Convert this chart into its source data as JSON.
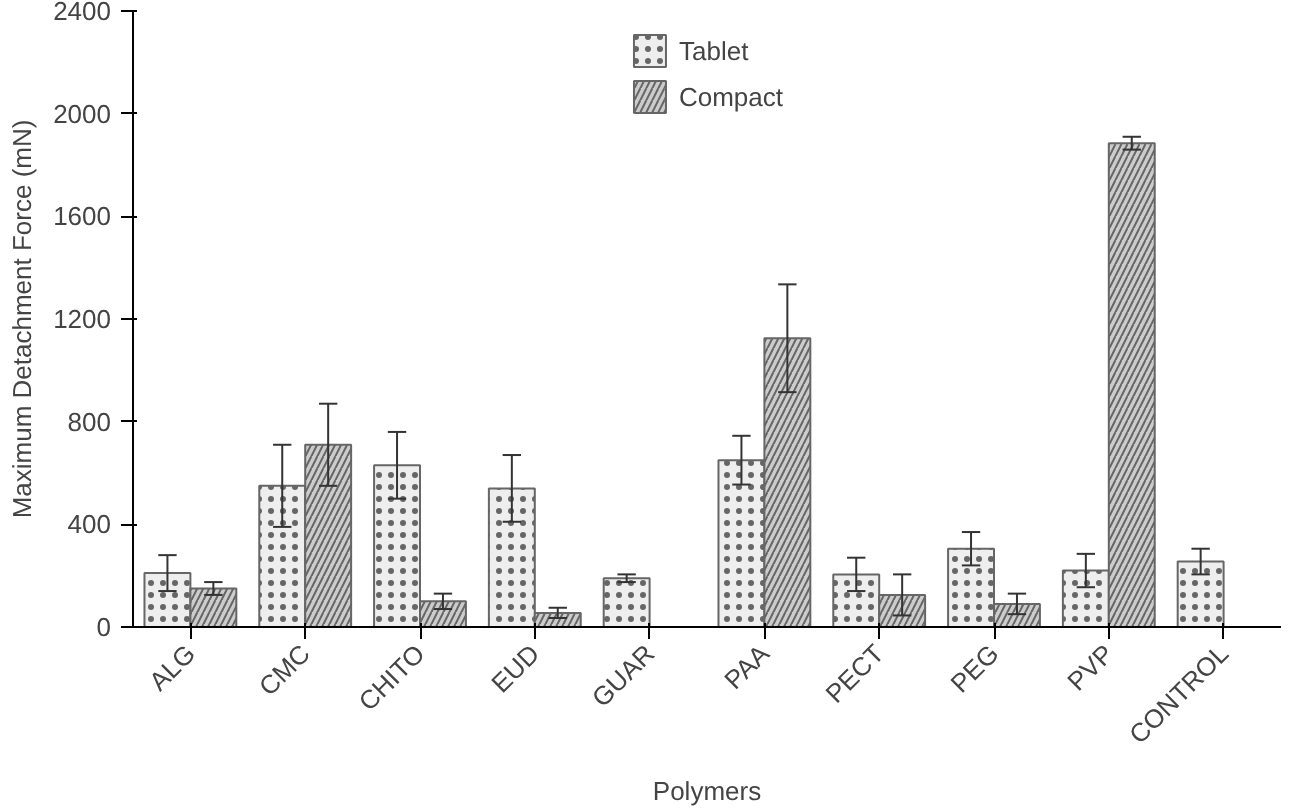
{
  "chart_data": {
    "type": "bar",
    "xlabel": "Polymers",
    "ylabel": "Maximum Detachment Force (mN)",
    "categories": [
      "ALG",
      "CMC",
      "CHITO",
      "EUD",
      "GUAR",
      "PAA",
      "PECT",
      "PEG",
      "PVP",
      "CONTROL"
    ],
    "series": [
      {
        "name": "Tablet",
        "color": "#eeeeee",
        "values": [
          210,
          550,
          630,
          540,
          190,
          650,
          205,
          305,
          220,
          255
        ],
        "errors": [
          70,
          160,
          130,
          130,
          15,
          95,
          65,
          65,
          65,
          50
        ]
      },
      {
        "name": "Compact",
        "color": "#cccccc",
        "values": [
          150,
          710,
          100,
          55,
          null,
          1125,
          125,
          90,
          1885,
          null
        ],
        "errors": [
          25,
          160,
          30,
          20,
          null,
          210,
          80,
          40,
          25,
          null
        ]
      }
    ],
    "ylim": [
      0,
      2400
    ],
    "yticks": [
      0,
      400,
      800,
      1200,
      1600,
      2000,
      2400
    ],
    "grid": false,
    "legend": "top"
  }
}
